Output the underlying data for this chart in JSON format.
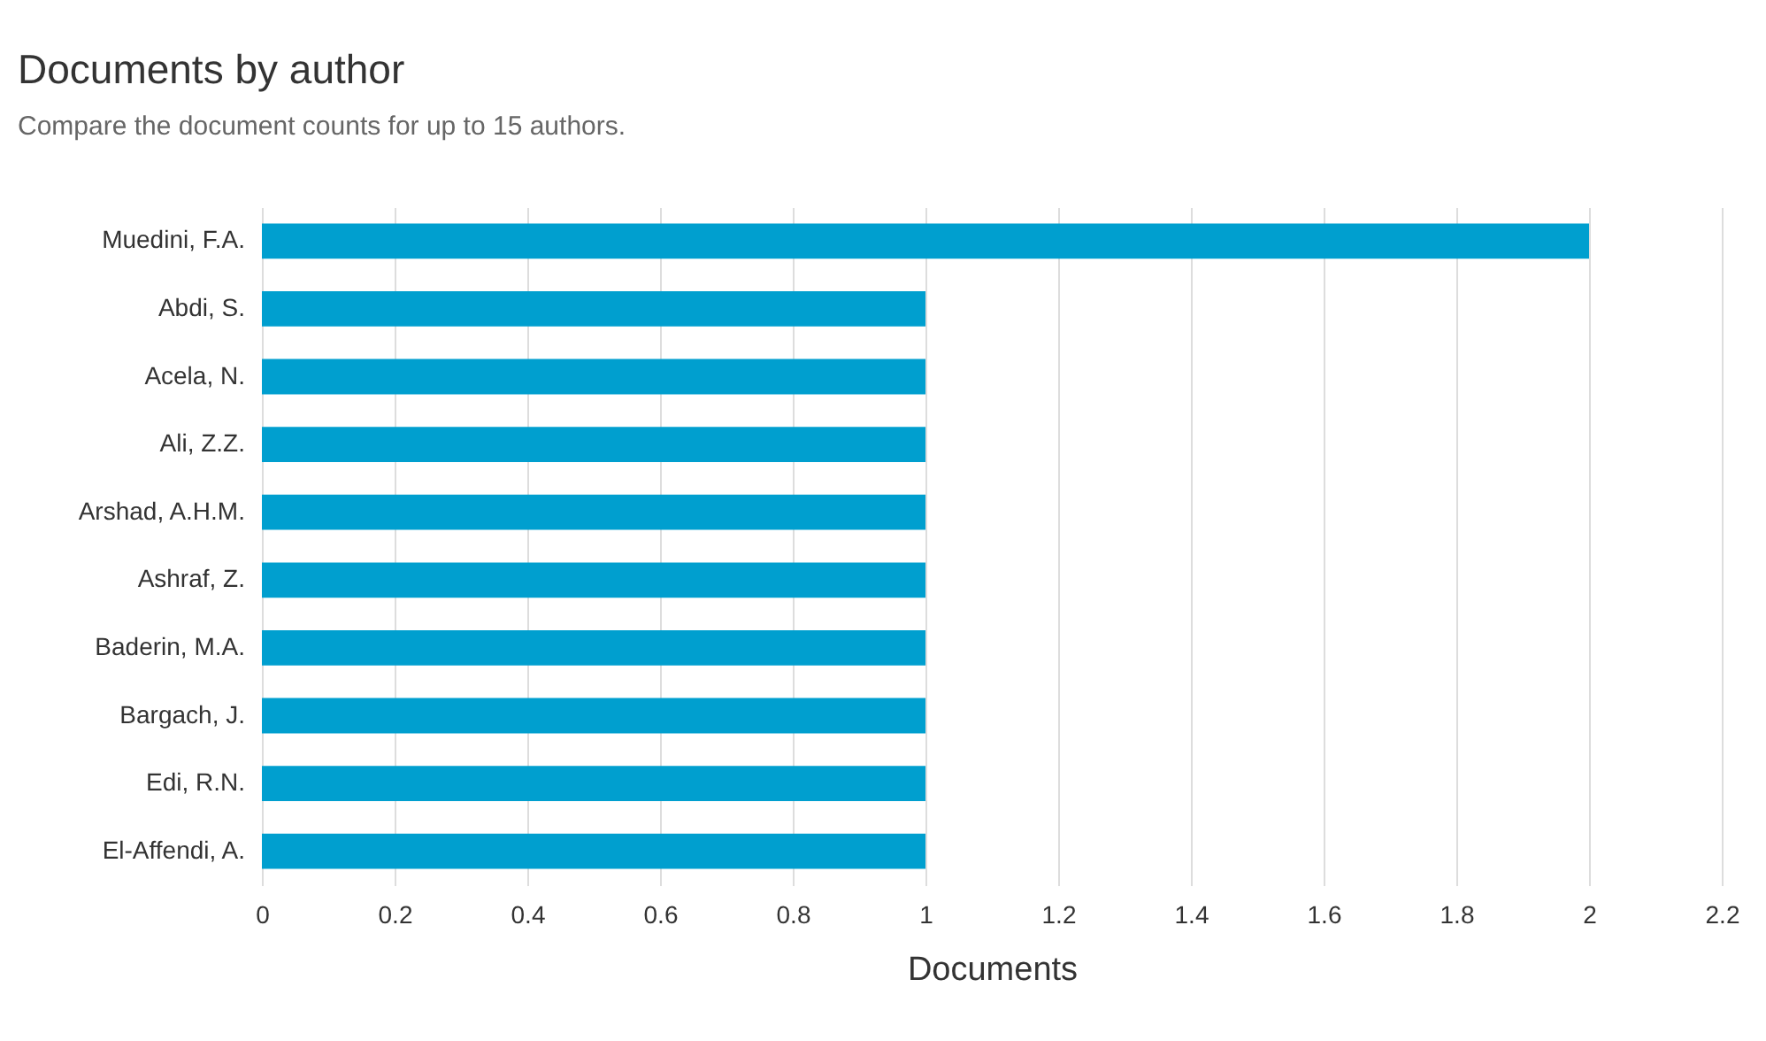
{
  "chart_data": {
    "type": "bar",
    "orientation": "horizontal",
    "title": "Documents by author",
    "subtitle": "Compare the document counts for up to 15 authors.",
    "xlabel": "Documents",
    "categories": [
      "Muedini, F.A.",
      "Abdi, S.",
      "Acela, N.",
      "Ali, Z.Z.",
      "Arshad, A.H.M.",
      "Ashraf, Z.",
      "Baderin, M.A.",
      "Bargach, J.",
      "Edi, R.N.",
      "El-Affendi, A."
    ],
    "values": [
      2,
      1,
      1,
      1,
      1,
      1,
      1,
      1,
      1,
      1
    ],
    "color": "#009fcf",
    "xlim": [
      0,
      2.2
    ],
    "xticks": [
      0,
      0.2,
      0.4,
      0.6,
      0.8,
      1,
      1.2,
      1.4,
      1.6,
      1.8,
      2,
      2.2
    ],
    "grid": "x"
  }
}
